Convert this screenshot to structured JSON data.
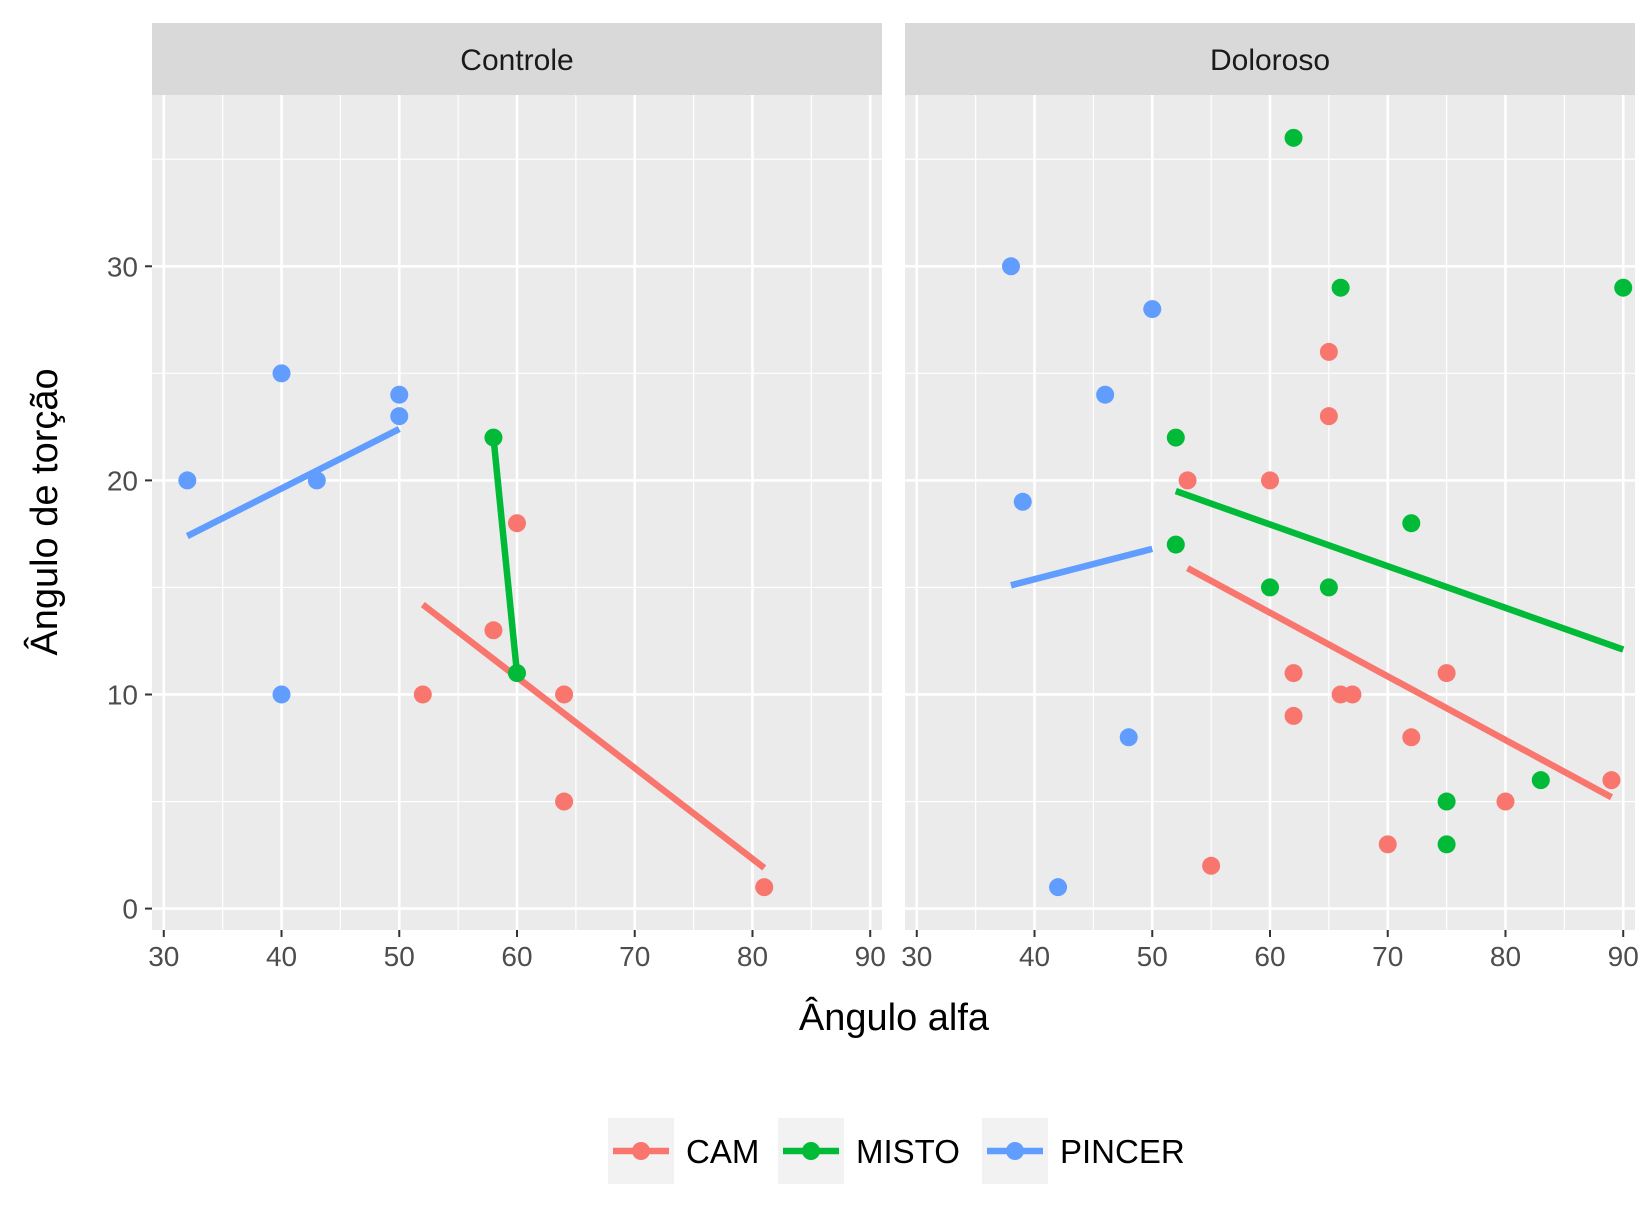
{
  "chart_data": {
    "type": "scatter",
    "title": "",
    "xlabel": "Ângulo alfa",
    "ylabel": "Ângulo de torção",
    "xlim": [
      29,
      91
    ],
    "ylim": [
      -1,
      38
    ],
    "x_ticks": [
      "30",
      "40",
      "50",
      "60",
      "70",
      "80",
      "90"
    ],
    "y_ticks": [
      "0",
      "10",
      "20",
      "30"
    ],
    "x_tick_values": [
      30,
      40,
      50,
      60,
      70,
      80,
      90
    ],
    "y_tick_values": [
      0,
      10,
      20,
      30
    ],
    "grid": true,
    "legend_position": "bottom",
    "colors": {
      "CAM": "#F8766D",
      "MISTO": "#00BA38",
      "PINCER": "#619CFF"
    },
    "legend": [
      "CAM",
      "MISTO",
      "PINCER"
    ],
    "panels": [
      {
        "label": "Controle",
        "series": [
          {
            "name": "CAM",
            "points": [
              [
                52,
                10
              ],
              [
                58,
                13
              ],
              [
                60,
                18
              ],
              [
                64,
                10
              ],
              [
                64,
                5
              ],
              [
                81,
                1
              ]
            ],
            "fit": [
              [
                52,
                14.2
              ],
              [
                81,
                1.9
              ]
            ]
          },
          {
            "name": "MISTO",
            "points": [
              [
                58,
                22
              ],
              [
                60,
                11
              ]
            ],
            "fit": [
              [
                58,
                22
              ],
              [
                60,
                11
              ]
            ]
          },
          {
            "name": "PINCER",
            "points": [
              [
                32,
                20
              ],
              [
                40,
                25
              ],
              [
                40,
                10
              ],
              [
                43,
                20
              ],
              [
                50,
                24
              ],
              [
                50,
                23
              ]
            ],
            "fit": [
              [
                32,
                17.4
              ],
              [
                50,
                22.4
              ]
            ]
          }
        ]
      },
      {
        "label": "Doloroso",
        "series": [
          {
            "name": "CAM",
            "points": [
              [
                53,
                20
              ],
              [
                55,
                2
              ],
              [
                60,
                20
              ],
              [
                62,
                11
              ],
              [
                62,
                9
              ],
              [
                65,
                26
              ],
              [
                65,
                23
              ],
              [
                66,
                10
              ],
              [
                67,
                10
              ],
              [
                70,
                3
              ],
              [
                72,
                8
              ],
              [
                75,
                11
              ],
              [
                80,
                5
              ],
              [
                89,
                6
              ]
            ],
            "fit": [
              [
                53,
                15.9
              ],
              [
                89,
                5.2
              ]
            ]
          },
          {
            "name": "MISTO",
            "points": [
              [
                52,
                22
              ],
              [
                52,
                17
              ],
              [
                60,
                15
              ],
              [
                62,
                36
              ],
              [
                65,
                15
              ],
              [
                66,
                29
              ],
              [
                72,
                18
              ],
              [
                75,
                5
              ],
              [
                75,
                3
              ],
              [
                83,
                6
              ],
              [
                90,
                29
              ]
            ],
            "fit": [
              [
                52,
                19.5
              ],
              [
                90,
                12.1
              ]
            ]
          },
          {
            "name": "PINCER",
            "points": [
              [
                38,
                30
              ],
              [
                39,
                19
              ],
              [
                42,
                1
              ],
              [
                46,
                24
              ],
              [
                48,
                8
              ],
              [
                50,
                28
              ]
            ],
            "fit": [
              [
                38,
                15.1
              ],
              [
                50,
                16.8
              ]
            ]
          }
        ]
      }
    ]
  }
}
